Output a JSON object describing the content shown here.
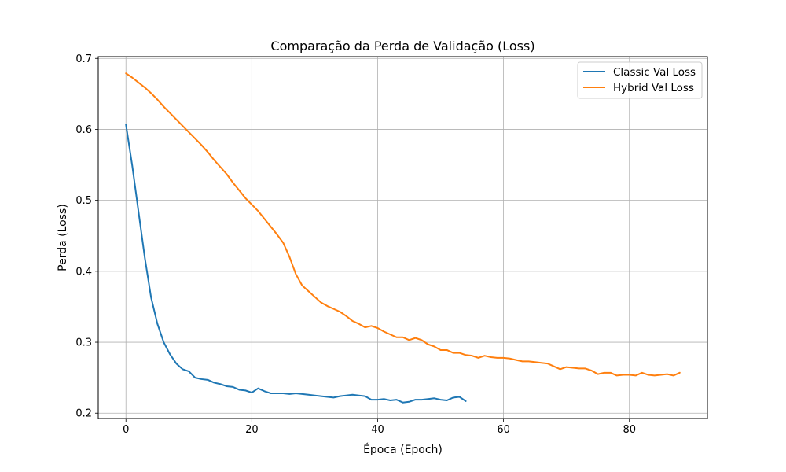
{
  "chart_data": {
    "type": "line",
    "title": "Comparação da Perda de Validação (Loss)",
    "xlabel": "Época (Epoch)",
    "ylabel": "Perda (Loss)",
    "xlim": [
      -4.4,
      92.4
    ],
    "ylim": [
      0.1925,
      0.7025
    ],
    "xticks": [
      0,
      20,
      40,
      60,
      80
    ],
    "yticks": [
      0.2,
      0.3,
      0.4,
      0.5,
      0.6,
      0.7
    ],
    "grid": true,
    "legend_position": "top-right",
    "series": [
      {
        "name": "Classic Val Loss",
        "color": "#1f77b4",
        "x": [
          0,
          1,
          2,
          3,
          4,
          5,
          6,
          7,
          8,
          9,
          10,
          11,
          12,
          13,
          14,
          15,
          16,
          17,
          18,
          19,
          20,
          21,
          22,
          23,
          24,
          25,
          26,
          27,
          28,
          29,
          30,
          31,
          32,
          33,
          34,
          35,
          36,
          37,
          38,
          39,
          40,
          41,
          42,
          43,
          44,
          45,
          46,
          47,
          48,
          49,
          50,
          51,
          52,
          53,
          54
        ],
        "y": [
          0.607,
          0.549,
          0.484,
          0.419,
          0.363,
          0.326,
          0.3,
          0.283,
          0.27,
          0.262,
          0.259,
          0.25,
          0.248,
          0.247,
          0.243,
          0.241,
          0.238,
          0.237,
          0.233,
          0.232,
          0.229,
          0.235,
          0.231,
          0.228,
          0.228,
          0.228,
          0.227,
          0.228,
          0.227,
          0.226,
          0.225,
          0.224,
          0.223,
          0.222,
          0.224,
          0.225,
          0.226,
          0.225,
          0.224,
          0.219,
          0.219,
          0.22,
          0.218,
          0.219,
          0.215,
          0.216,
          0.219,
          0.219,
          0.22,
          0.221,
          0.219,
          0.218,
          0.222,
          0.223,
          0.217
        ]
      },
      {
        "name": "Hybrid Val Loss",
        "color": "#ff7f0e",
        "x": [
          0,
          1,
          2,
          3,
          4,
          5,
          6,
          7,
          8,
          9,
          10,
          11,
          12,
          13,
          14,
          15,
          16,
          17,
          18,
          19,
          20,
          21,
          22,
          23,
          24,
          25,
          26,
          27,
          28,
          29,
          30,
          31,
          32,
          33,
          34,
          35,
          36,
          37,
          38,
          39,
          40,
          41,
          42,
          43,
          44,
          45,
          46,
          47,
          48,
          49,
          50,
          51,
          52,
          53,
          54,
          55,
          56,
          57,
          58,
          59,
          60,
          61,
          62,
          63,
          64,
          65,
          66,
          67,
          68,
          69,
          70,
          71,
          72,
          73,
          74,
          75,
          76,
          77,
          78,
          79,
          80,
          81,
          82,
          83,
          84,
          85,
          86,
          87,
          88
        ],
        "y": [
          0.679,
          0.673,
          0.666,
          0.659,
          0.651,
          0.642,
          0.632,
          0.623,
          0.614,
          0.605,
          0.596,
          0.587,
          0.578,
          0.568,
          0.557,
          0.547,
          0.537,
          0.525,
          0.514,
          0.503,
          0.494,
          0.485,
          0.474,
          0.463,
          0.452,
          0.44,
          0.42,
          0.396,
          0.38,
          0.372,
          0.364,
          0.356,
          0.351,
          0.347,
          0.343,
          0.337,
          0.33,
          0.326,
          0.321,
          0.323,
          0.32,
          0.315,
          0.311,
          0.307,
          0.307,
          0.303,
          0.306,
          0.303,
          0.297,
          0.294,
          0.289,
          0.289,
          0.285,
          0.285,
          0.282,
          0.281,
          0.278,
          0.281,
          0.279,
          0.278,
          0.278,
          0.277,
          0.275,
          0.273,
          0.273,
          0.272,
          0.271,
          0.27,
          0.266,
          0.262,
          0.265,
          0.264,
          0.263,
          0.263,
          0.26,
          0.255,
          0.257,
          0.257,
          0.253,
          0.254,
          0.254,
          0.253,
          0.257,
          0.254,
          0.253,
          0.254,
          0.255,
          0.253,
          0.257
        ]
      }
    ]
  }
}
